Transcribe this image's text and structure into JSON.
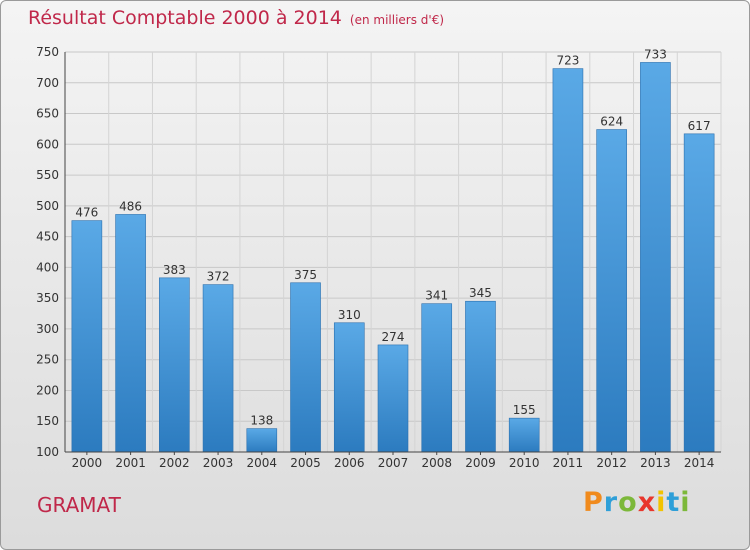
{
  "header": {
    "title": "Résultat Comptable 2000 à 2014",
    "subtitle": "(en milliers d'€)"
  },
  "footer": {
    "place": "GRAMAT",
    "brand": "Proxiti"
  },
  "colors": {
    "title": "#c0284a",
    "bar_light": "#5aa9e6",
    "bar_dark": "#2c7bbf"
  },
  "chart_data": {
    "type": "bar",
    "title": "Résultat Comptable 2000 à 2014",
    "subtitle": "(en milliers d'€)",
    "xlabel": "",
    "ylabel": "",
    "categories": [
      "2000",
      "2001",
      "2002",
      "2003",
      "2004",
      "2005",
      "2006",
      "2007",
      "2008",
      "2009",
      "2010",
      "2011",
      "2012",
      "2013",
      "2014"
    ],
    "values": [
      476,
      486,
      383,
      372,
      138,
      375,
      310,
      274,
      341,
      345,
      155,
      723,
      624,
      733,
      617
    ],
    "ylim": [
      100,
      750
    ],
    "yticks": [
      100,
      150,
      200,
      250,
      300,
      350,
      400,
      450,
      500,
      550,
      600,
      650,
      700,
      750
    ],
    "grid": true,
    "legend": "none"
  }
}
